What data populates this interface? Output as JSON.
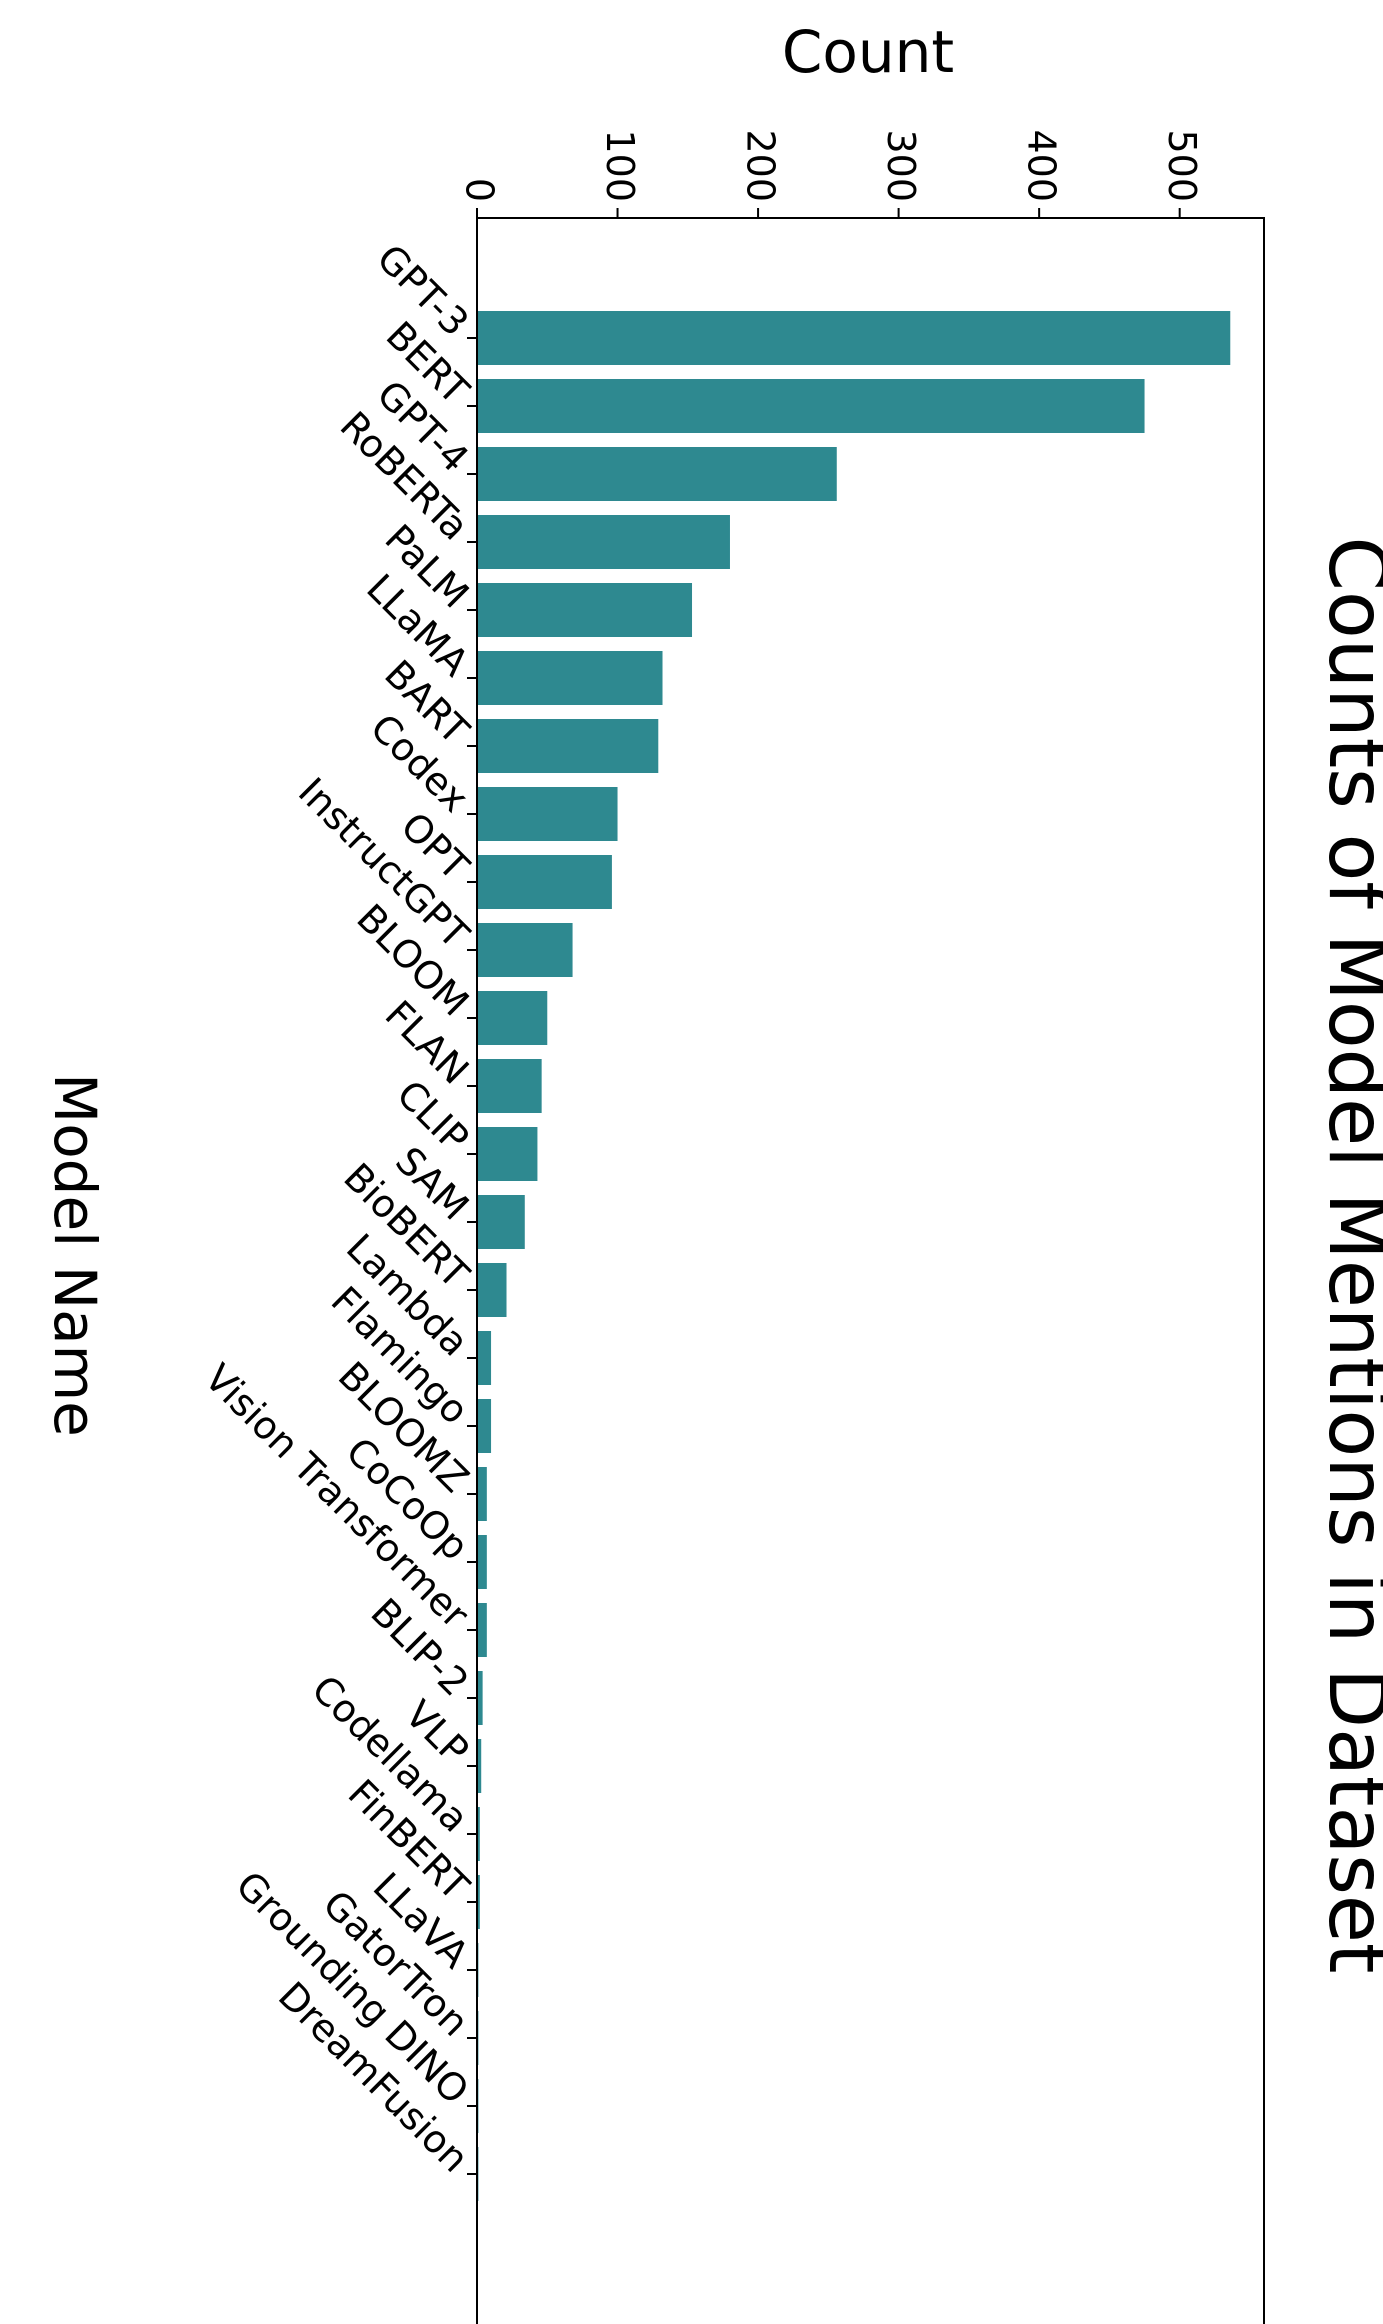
{
  "chart_data": {
    "type": "bar",
    "orientation": "horizontal",
    "title": "Counts of Model Mentions in Dataset",
    "xlabel": "Count",
    "ylabel": "Model Name",
    "xlim": [
      0,
      560
    ],
    "xticks": [
      "0",
      "100",
      "200",
      "300",
      "400",
      "500"
    ],
    "grid": false,
    "bar_color": "#2e8990",
    "categories": [
      "GPT-3",
      "BERT",
      "GPT-4",
      "RoBERTa",
      "PaLM",
      "LLaMA",
      "BART",
      "Codex",
      "OPT",
      "InstructGPT",
      "BLOOM",
      "FLAN",
      "CLIP",
      "SAM",
      "BioBERT",
      "Lambda",
      "Flamingo",
      "BLOOMZ",
      "CoCoOp",
      "Vision Transformer",
      "BLIP-2",
      "VLP",
      "Codellama",
      "FinBERT",
      "LLaVA",
      "GatorTron",
      "Grounding DINO",
      "DreamFusion"
    ],
    "values": [
      536,
      475,
      256,
      180,
      153,
      132,
      129,
      100,
      96,
      68,
      50,
      46,
      43,
      34,
      21,
      10,
      10,
      7,
      7,
      7,
      4,
      3,
      2,
      2,
      1,
      1,
      1,
      1
    ]
  }
}
